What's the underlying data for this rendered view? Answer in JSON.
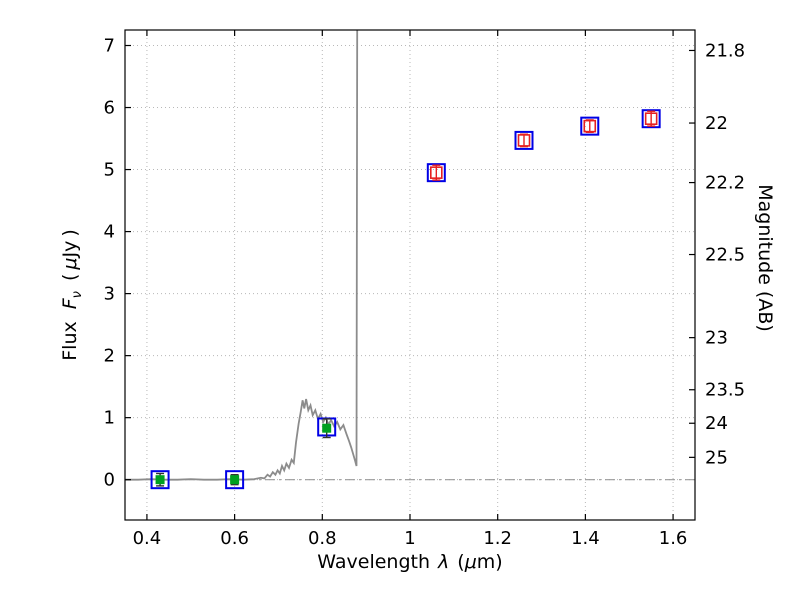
{
  "labels": {
    "xlabel_word": "Wavelength",
    "xlabel_lambda": "λ",
    "xlabel_paren_open": "(",
    "xlabel_mu": "μ",
    "xlabel_close": "m)",
    "ylabel_word": "Flux",
    "ylabel_symbol": "F",
    "ylabel_subscript": "ν",
    "ylabel_paren_open": "(",
    "ylabel_mu": "μ",
    "ylabel_unit": "Jy",
    "ylabel_paren_close": ")",
    "ylabel_right": "Magnitude (AB)"
  },
  "chart_data": {
    "type": "line+scatter",
    "title": "",
    "xlabel": "Wavelength λ (μm)",
    "ylabel": "Flux Fν ( μJy )",
    "ylabel_right": "Magnitude (AB)",
    "xlim": [
      0.35,
      1.65
    ],
    "ylim": [
      -0.65,
      7.25
    ],
    "grid": {
      "show": true,
      "style": "dotted",
      "color": "#b8b8b8"
    },
    "x_ticks": {
      "values": [
        0.4,
        0.6,
        0.8,
        1.0,
        1.2,
        1.4,
        1.6
      ],
      "labels": [
        "0.4",
        "0.6",
        "0.8",
        "1",
        "1.2",
        "1.4",
        "1.6"
      ]
    },
    "y_ticks_left": {
      "values": [
        0,
        1,
        2,
        3,
        4,
        5,
        6,
        7
      ],
      "labels": [
        "0",
        "1",
        "2",
        "3",
        "4",
        "5",
        "6",
        "7"
      ]
    },
    "y_ticks_right": [
      {
        "label": "21.8",
        "flux": 6.92
      },
      {
        "label": "22",
        "flux": 5.75
      },
      {
        "label": "22.2",
        "flux": 4.79
      },
      {
        "label": "22.5",
        "flux": 3.63
      },
      {
        "label": "23",
        "flux": 2.29
      },
      {
        "label": "23.5",
        "flux": 1.45
      },
      {
        "label": "24",
        "flux": 0.91
      },
      {
        "label": "25",
        "flux": 0.36
      }
    ],
    "zero_line": {
      "flux": 0,
      "color": "#999999",
      "style": "dash-dot"
    },
    "series": [
      {
        "name": "model-spectrum",
        "type": "line",
        "color": "#8c8c8c",
        "width": 1.8,
        "points": [
          [
            0.35,
            0
          ],
          [
            0.38,
            0
          ],
          [
            0.41,
            0.01
          ],
          [
            0.44,
            0
          ],
          [
            0.47,
            0
          ],
          [
            0.5,
            0.01
          ],
          [
            0.53,
            0
          ],
          [
            0.56,
            0
          ],
          [
            0.59,
            0.01
          ],
          [
            0.62,
            0
          ],
          [
            0.645,
            0.01
          ],
          [
            0.66,
            0.03
          ],
          [
            0.668,
            0.02
          ],
          [
            0.675,
            0.08
          ],
          [
            0.681,
            0.05
          ],
          [
            0.687,
            0.12
          ],
          [
            0.693,
            0.08
          ],
          [
            0.698,
            0.15
          ],
          [
            0.703,
            0.1
          ],
          [
            0.708,
            0.22
          ],
          [
            0.713,
            0.15
          ],
          [
            0.718,
            0.26
          ],
          [
            0.724,
            0.19
          ],
          [
            0.73,
            0.32
          ],
          [
            0.735,
            0.27
          ],
          [
            0.74,
            0.6
          ],
          [
            0.746,
            0.9
          ],
          [
            0.751,
            1.1
          ],
          [
            0.755,
            1.28
          ],
          [
            0.759,
            1.15
          ],
          [
            0.763,
            1.3
          ],
          [
            0.768,
            1.12
          ],
          [
            0.773,
            1.2
          ],
          [
            0.778,
            1.04
          ],
          [
            0.784,
            1.12
          ],
          [
            0.79,
            0.98
          ],
          [
            0.796,
            1.06
          ],
          [
            0.802,
            0.93
          ],
          [
            0.808,
            1
          ],
          [
            0.814,
            0.89
          ],
          [
            0.82,
            0.96
          ],
          [
            0.827,
            0.86
          ],
          [
            0.834,
            0.93
          ],
          [
            0.841,
            0.81
          ],
          [
            0.848,
            0.88
          ],
          [
            0.855,
            0.74
          ],
          [
            0.861,
            0.62
          ],
          [
            0.866,
            0.52
          ],
          [
            0.871,
            0.4
          ],
          [
            0.875,
            0.3
          ],
          [
            0.878,
            0.22
          ],
          [
            0.8795,
            7.25
          ]
        ]
      },
      {
        "name": "model-photometry",
        "type": "scatter",
        "marker": "open-square",
        "color": "#0000e6",
        "size": 17,
        "stroke_width": 2,
        "points": [
          [
            0.43,
            0.0
          ],
          [
            0.6,
            0.0
          ],
          [
            0.81,
            0.85
          ],
          [
            1.06,
            4.95
          ],
          [
            1.26,
            5.47
          ],
          [
            1.41,
            5.7
          ],
          [
            1.55,
            5.82
          ]
        ]
      },
      {
        "name": "observed-optical",
        "type": "scatter-error",
        "marker": "filled-square",
        "color": "#00a020",
        "error_color": "#303030",
        "size": 9,
        "points": [
          {
            "x": 0.43,
            "y": 0.0,
            "yerr": 0.1
          },
          {
            "x": 0.6,
            "y": 0.0,
            "yerr": 0.08
          },
          {
            "x": 0.81,
            "y": 0.83,
            "yerr": 0.15
          }
        ]
      },
      {
        "name": "observed-infrared",
        "type": "scatter-error",
        "marker": "open-square",
        "color": "#e62020",
        "error_color": "#e62020",
        "size": 11,
        "stroke_width": 1.6,
        "points": [
          {
            "x": 1.06,
            "y": 4.95,
            "yerr": 0.12
          },
          {
            "x": 1.26,
            "y": 5.47,
            "yerr": 0.1
          },
          {
            "x": 1.41,
            "y": 5.7,
            "yerr": 0.1
          },
          {
            "x": 1.55,
            "y": 5.82,
            "yerr": 0.12
          }
        ]
      }
    ]
  }
}
